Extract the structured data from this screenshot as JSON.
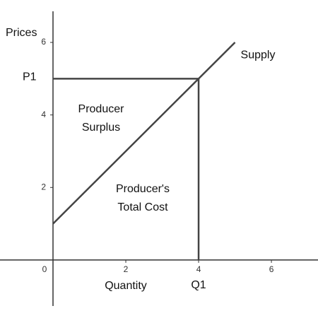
{
  "chart_data": {
    "type": "line",
    "y_label": "Prices",
    "x_label": "Quantity",
    "x": [
      0,
      5
    ],
    "series": [
      {
        "name": "Supply",
        "color": "#444444",
        "values": [
          1,
          6
        ]
      }
    ],
    "xlim": [
      -1.456,
      7.28
    ],
    "ylim": [
      -1.6,
      7.17
    ],
    "xticks": [
      0,
      2,
      4,
      6
    ],
    "yticks": [
      2,
      4,
      6
    ],
    "p1": {
      "label": "P1",
      "value": 5
    },
    "q1": {
      "label": "Q1",
      "value": 4
    },
    "annotations": [
      [
        "Producer",
        "Surplus"
      ],
      [
        "Producer's",
        "Total Cost"
      ]
    ]
  }
}
